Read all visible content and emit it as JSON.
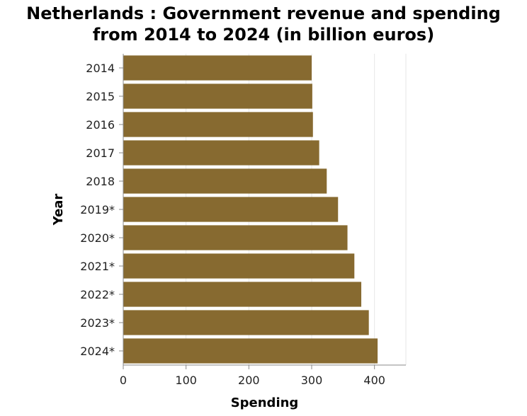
{
  "chart_data": {
    "type": "bar",
    "orientation": "horizontal",
    "title": "Netherlands : Government revenue and spending from 2014 to 2024 (in billion euros)",
    "title_lines": [
      "Netherlands : Government revenue and spending",
      "from 2014 to 2024 (in billion euros)"
    ],
    "xlabel": "Spending",
    "ylabel": "Year",
    "categories": [
      "2014",
      "2015",
      "2016",
      "2017",
      "2018",
      "2019*",
      "2020*",
      "2021*",
      "2022*",
      "2023*",
      "2024*"
    ],
    "values": [
      300,
      301,
      302,
      312,
      324,
      342,
      357,
      368,
      379,
      391,
      405
    ],
    "xlim": [
      0,
      450
    ],
    "xticks": [
      "0",
      "100",
      "200",
      "300",
      "400"
    ],
    "grid": true,
    "bar_color": "#876a30",
    "grid_color": "#e6e6e6",
    "axis_color": "#888888"
  }
}
